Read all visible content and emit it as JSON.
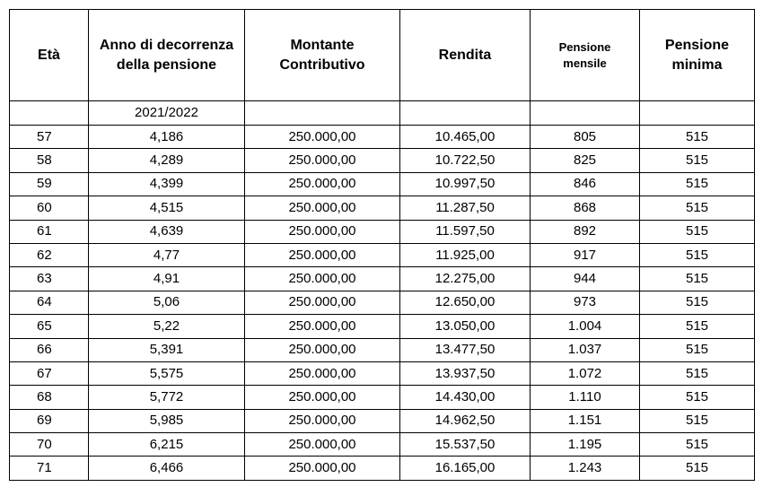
{
  "table": {
    "header": [
      [
        "Età"
      ],
      [
        "Anno di decorrenza",
        "della pensione"
      ],
      [
        "Montante",
        "Contributivo"
      ],
      [
        "Rendita"
      ],
      [
        "Pensione",
        "mensile"
      ],
      [
        "Pensione",
        "minima"
      ]
    ],
    "year": "2021/2022",
    "rows": [
      [
        "57",
        "4,186",
        "250.000,00",
        "10.465,00",
        "805",
        "515"
      ],
      [
        "58",
        "4,289",
        "250.000,00",
        "10.722,50",
        "825",
        "515"
      ],
      [
        "59",
        "4,399",
        "250.000,00",
        "10.997,50",
        "846",
        "515"
      ],
      [
        "60",
        "4,515",
        "250.000,00",
        "11.287,50",
        "868",
        "515"
      ],
      [
        "61",
        "4,639",
        "250.000,00",
        "11.597,50",
        "892",
        "515"
      ],
      [
        "62",
        "4,77",
        "250.000,00",
        "11.925,00",
        "917",
        "515"
      ],
      [
        "63",
        "4,91",
        "250.000,00",
        "12.275,00",
        "944",
        "515"
      ],
      [
        "64",
        "5,06",
        "250.000,00",
        "12.650,00",
        "973",
        "515"
      ],
      [
        "65",
        "5,22",
        "250.000,00",
        "13.050,00",
        "1.004",
        "515"
      ],
      [
        "66",
        "5,391",
        "250.000,00",
        "13.477,50",
        "1.037",
        "515"
      ],
      [
        "67",
        "5,575",
        "250.000,00",
        "13.937,50",
        "1.072",
        "515"
      ],
      [
        "68",
        "5,772",
        "250.000,00",
        "14.430,00",
        "1.110",
        "515"
      ],
      [
        "69",
        "5,985",
        "250.000,00",
        "14.962,50",
        "1.151",
        "515"
      ],
      [
        "70",
        "6,215",
        "250.000,00",
        "15.537,50",
        "1.195",
        "515"
      ],
      [
        "71",
        "6,466",
        "250.000,00",
        "16.165,00",
        "1.243",
        "515"
      ]
    ]
  }
}
